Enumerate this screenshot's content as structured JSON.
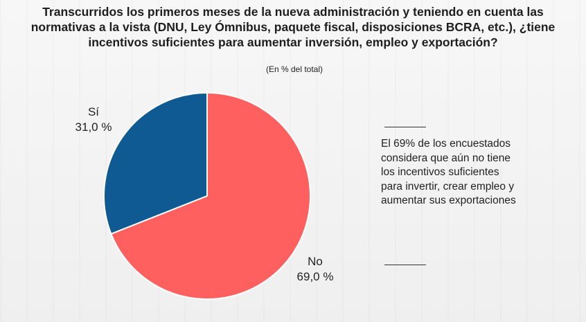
{
  "title": "Transcurridos los primeros meses de la nueva administración y teniendo en cuenta las normativas a la vista (DNU, Ley Ómnibus, paquete fiscal, disposiciones BCRA, etc.), ¿tiene incentivos suficientes para aumentar inversión, empleo y exportación?",
  "subtitle": "(En % del total)",
  "note": "El 69% de los encuestados considera que aún no tiene los incentivos suficientes para invertir, crear empleo y aumentar sus exportaciones",
  "colors": {
    "si": "#0f5a93",
    "no": "#fe5f5f",
    "stroke": "#ffffff"
  },
  "chart_data": {
    "type": "pie",
    "title": "Transcurridos los primeros meses de la nueva administración y teniendo en cuenta las normativas a la vista (DNU, Ley Ómnibus, paquete fiscal, disposiciones BCRA, etc.), ¿tiene incentivos suficientes para aumentar inversión, empleo y exportación?",
    "subtitle": "(En % del total)",
    "unit": "%",
    "categories": [
      "Sí",
      "No"
    ],
    "values": [
      31.0,
      69.0
    ],
    "value_labels": [
      "31,0 %",
      "69,0 %"
    ]
  }
}
